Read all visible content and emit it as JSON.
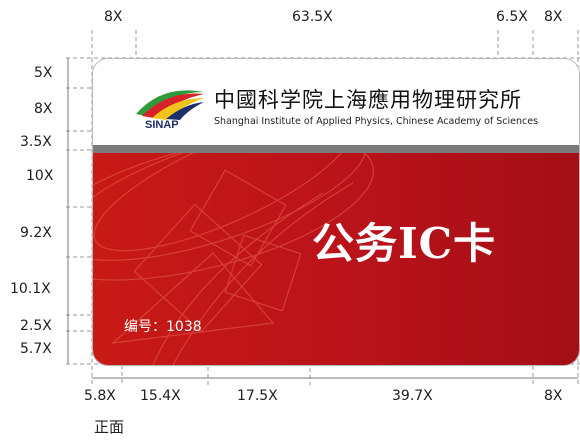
{
  "top_dims": [
    "8X",
    "63.5X",
    "6.5X",
    "8X"
  ],
  "left_dims": [
    "5X",
    "8X",
    "3.5X",
    "10X",
    "9.2X",
    "10.1X",
    "2.5X",
    "5.7X"
  ],
  "bottom_dims": [
    "5.8X",
    "15.4X",
    "17.5X",
    "39.7X",
    "8X"
  ],
  "card": {
    "org_name_cn": "中國科学院上海應用物理研究所",
    "org_name_en": "Shanghai Institute of Applied Physics, Chinese Academy of Sciences",
    "logo_text": "SINAP",
    "title": "公务IC卡",
    "number_label": "编号：1038"
  },
  "caption": "正面",
  "colors": {
    "card_red": "#c0161a",
    "bar_gray": "#7b7b7b",
    "logo_green": "#2f9a3a",
    "logo_blue": "#1c2f6b"
  }
}
